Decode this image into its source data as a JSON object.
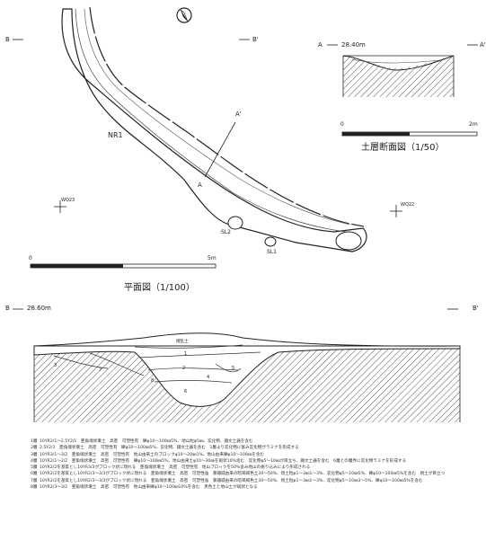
{
  "plan": {
    "feature_label": "NR1",
    "section_b_left": "B",
    "section_b_right": "B'",
    "section_a_label": "A'",
    "section_a2_label": "A",
    "wq_left": "WQ23",
    "wq_right": "WQ22",
    "sl1": "SL1",
    "sl2": "SL2",
    "scale_start": "0",
    "scale_end": "5m",
    "caption": "平面図（1/100）"
  },
  "section_a": {
    "left_label": "A",
    "elevation": "28.40m",
    "right_label": "A'",
    "scale_start": "0",
    "scale_end": "2m",
    "caption": "土層断面図（1/50）"
  },
  "section_b": {
    "left_label": "B",
    "elevation": "28.60m",
    "right_label": "B'",
    "layer_tags": [
      "1",
      "2",
      "3",
      "4",
      "5",
      "6",
      "7",
      "8"
    ],
    "top_note": "撹乱土"
  },
  "layers": [
    {
      "no": "1層",
      "text": "10YR2/1～2.5Y2/1　亜角塊状壌土　高密　可塑性有　礫φ10～100㎜5%、地山粒φ5㎜、炭化物、鐵文土器を含む"
    },
    {
      "no": "2層",
      "text": "2.5Y2/1　亜角塊状壌土　高密　可塑性有　礫φ10～100㎜5%、炭化物、鐵文土器を含む　1層より炭化物に富み炭化物がラミナを形成する"
    },
    {
      "no": "3層",
      "text": "10YR3/1～3/2　亜角塊状壌土　高密　可塑性有　地山由来土のブロックφ10～20㎜1%、地山由来礫φ10～100㎜を含む"
    },
    {
      "no": "4層",
      "text": "10YR2/1～2/2　亜角塊状壌土　高密　可塑性有　礫φ10～100㎜5%、地山由来土φ10～30㎜を斑状10%含む　炭化物φ5～10㎜が目立ち、鐵文土器を含む　6層との層界に炭化物ラミナを形成する"
    },
    {
      "no": "5層",
      "text": "10YR2/2を基質とし10YR3/3がブロック状に現れる　亜角塊状壌土　高密　可塑性有　地山ブロックを50%含み地山の掘り込みにより形成される"
    },
    {
      "no": "6層",
      "text": "10YR2/2を基質とし10YR2/3～3/3がブロック状に現れる　亜角塊状壌土　高密　可塑性強　暴鐵城由来の暗褐褐色土30～50%、焼土粒φ1～3㎜1～3%、炭化物φ5～10㎜5%、礫φ10～100㎜5%を含む　焼土が目立つ"
    },
    {
      "no": "7層",
      "text": "10YR2/2を基質とし10YR2/3～3/3がブロック状に現れる　亜角塊状壌土　高密　可塑性強　暴鐵城由来の暗褐褐色土30～50%、焼土粒φ1～3㎜1～3%、炭化物φ5～10㎜3～5%、礫φ10～100㎜5%を含む"
    },
    {
      "no": "8層",
      "text": "10YR2/3～3/2　亜角塊状壌土　高密　可塑性有　地山由来礫φ10～100㎜10%を含む　黒色土と地山土が斑状となる"
    }
  ]
}
